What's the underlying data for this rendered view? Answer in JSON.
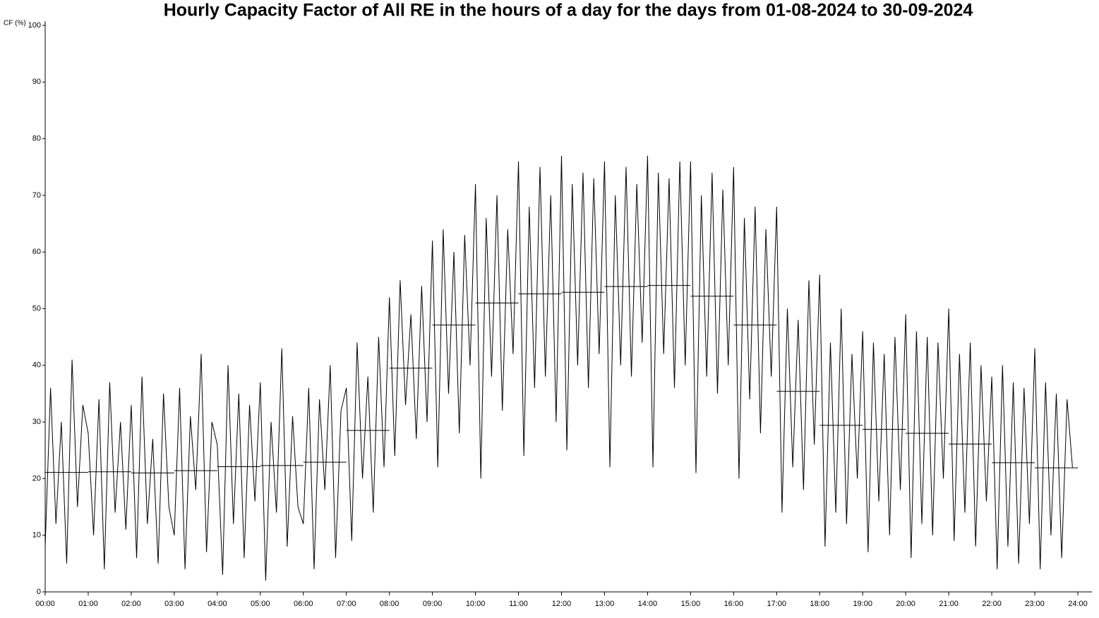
{
  "chart_data": {
    "type": "line",
    "title": "Hourly Capacity Factor of All RE in the hours of a day for the days from 01-08-2024 to 30-09-2024",
    "y_label": "CF (%)",
    "ylim": [
      0,
      100
    ],
    "yticks": [
      0,
      10,
      20,
      30,
      40,
      50,
      60,
      70,
      80,
      90,
      100
    ],
    "xlim": [
      0,
      24
    ],
    "xticks": [
      {
        "value": 0,
        "label": "00:00"
      },
      {
        "value": 1,
        "label": "01:00"
      },
      {
        "value": 2,
        "label": "02:00"
      },
      {
        "value": 3,
        "label": "03:00"
      },
      {
        "value": 4,
        "label": "04:00"
      },
      {
        "value": 5,
        "label": "05:00"
      },
      {
        "value": 6,
        "label": "06:00"
      },
      {
        "value": 7,
        "label": "07:00"
      },
      {
        "value": 8,
        "label": "08:00"
      },
      {
        "value": 9,
        "label": "09:00"
      },
      {
        "value": 10,
        "label": "10:00"
      },
      {
        "value": 11,
        "label": "11:00"
      },
      {
        "value": 12,
        "label": "12:00"
      },
      {
        "value": 13,
        "label": "13:00"
      },
      {
        "value": 14,
        "label": "14:00"
      },
      {
        "value": 15,
        "label": "15:00"
      },
      {
        "value": 16,
        "label": "16:00"
      },
      {
        "value": 17,
        "label": "17:00"
      },
      {
        "value": 18,
        "label": "18:00"
      },
      {
        "value": 19,
        "label": "19:00"
      },
      {
        "value": 20,
        "label": "20:00"
      },
      {
        "value": 21,
        "label": "21:00"
      },
      {
        "value": 22,
        "label": "22:00"
      },
      {
        "value": 23,
        "label": "23:00"
      },
      {
        "value": 24,
        "label": "24:00"
      }
    ],
    "series": [
      {
        "color": "#000000",
        "style": "line",
        "x": [
          0,
          0.125,
          0.25,
          0.375,
          0.5,
          0.625,
          0.75,
          0.875,
          1,
          1.125,
          1.25,
          1.375,
          1.5,
          1.625,
          1.75,
          1.875,
          2,
          2.125,
          2.25,
          2.375,
          2.5,
          2.625,
          2.75,
          2.875,
          3,
          3.125,
          3.25,
          3.375,
          3.5,
          3.625,
          3.75,
          3.875,
          4,
          4.125,
          4.25,
          4.375,
          4.5,
          4.625,
          4.75,
          4.875,
          5,
          5.125,
          5.25,
          5.375,
          5.5,
          5.625,
          5.75,
          5.875,
          6,
          6.125,
          6.25,
          6.375,
          6.5,
          6.625,
          6.75,
          6.875,
          7,
          7.125,
          7.25,
          7.375,
          7.5,
          7.625,
          7.75,
          7.875,
          8,
          8.125,
          8.25,
          8.375,
          8.5,
          8.625,
          8.75,
          8.875,
          9,
          9.125,
          9.25,
          9.375,
          9.5,
          9.625,
          9.75,
          9.875,
          10,
          10.125,
          10.25,
          10.375,
          10.5,
          10.625,
          10.75,
          10.875,
          11,
          11.125,
          11.25,
          11.375,
          11.5,
          11.625,
          11.75,
          11.875,
          12,
          12.125,
          12.25,
          12.375,
          12.5,
          12.625,
          12.75,
          12.875,
          13,
          13.125,
          13.25,
          13.375,
          13.5,
          13.625,
          13.75,
          13.875,
          14,
          14.125,
          14.25,
          14.375,
          14.5,
          14.625,
          14.75,
          14.875,
          15,
          15.125,
          15.25,
          15.375,
          15.5,
          15.625,
          15.75,
          15.875,
          16,
          16.125,
          16.25,
          16.375,
          16.5,
          16.625,
          16.75,
          16.875,
          17,
          17.125,
          17.25,
          17.375,
          17.5,
          17.625,
          17.75,
          17.875,
          18,
          18.125,
          18.25,
          18.375,
          18.5,
          18.625,
          18.75,
          18.875,
          19,
          19.125,
          19.25,
          19.375,
          19.5,
          19.625,
          19.75,
          19.875,
          20,
          20.125,
          20.25,
          20.375,
          20.5,
          20.625,
          20.75,
          20.875,
          21,
          21.125,
          21.25,
          21.375,
          21.5,
          21.625,
          21.75,
          21.875,
          22,
          22.125,
          22.25,
          22.375,
          22.5,
          22.625,
          22.75,
          22.875,
          23,
          23.125,
          23.25,
          23.375,
          23.5,
          23.625,
          23.75,
          23.875
        ],
        "values": [
          8,
          36,
          12,
          30,
          5,
          41,
          15,
          33,
          28,
          10,
          34,
          4,
          37,
          14,
          30,
          11,
          33,
          6,
          38,
          12,
          27,
          5,
          35,
          15,
          10,
          36,
          4,
          31,
          18,
          42,
          7,
          30,
          26,
          3,
          40,
          12,
          35,
          6,
          33,
          16,
          37,
          2,
          30,
          14,
          43,
          8,
          31,
          15,
          12,
          36,
          4,
          34,
          18,
          40,
          6,
          32,
          36,
          9,
          44,
          20,
          38,
          14,
          45,
          22,
          52,
          24,
          55,
          33,
          49,
          27,
          54,
          30,
          62,
          22,
          64,
          35,
          60,
          28,
          63,
          40,
          72,
          20,
          66,
          38,
          70,
          32,
          64,
          42,
          76,
          24,
          68,
          36,
          75,
          38,
          70,
          30,
          77,
          25,
          72,
          40,
          74,
          36,
          73,
          42,
          76,
          22,
          70,
          40,
          75,
          38,
          72,
          44,
          77,
          22,
          74,
          42,
          73,
          36,
          76,
          40,
          76,
          21,
          70,
          38,
          74,
          35,
          71,
          40,
          75,
          20,
          66,
          34,
          68,
          28,
          64,
          38,
          68,
          14,
          50,
          22,
          48,
          18,
          55,
          26,
          56,
          8,
          44,
          14,
          50,
          12,
          42,
          20,
          46,
          7,
          44,
          16,
          42,
          10,
          45,
          18,
          49,
          6,
          46,
          12,
          45,
          10,
          44,
          20,
          50,
          9,
          42,
          14,
          44,
          8,
          40,
          16,
          38,
          4,
          40,
          8,
          37,
          5,
          36,
          12,
          43,
          4,
          37,
          10,
          35,
          6,
          34,
          22
        ]
      },
      {
        "color": "#000000",
        "style": "step",
        "x": [
          0,
          1,
          2,
          3,
          4,
          5,
          6,
          7,
          8,
          9,
          10,
          11,
          12,
          13,
          14,
          15,
          16,
          17,
          18,
          19,
          20,
          21,
          22,
          23
        ],
        "values": [
          21.1,
          21.2,
          21,
          21.4,
          22.1,
          22.3,
          22.9,
          28.5,
          39.5,
          47.1,
          51,
          52.6,
          52.9,
          53.9,
          54.1,
          52.2,
          47.1,
          35.4,
          29.4,
          28.7,
          28,
          26.1,
          22.8,
          21.9
        ]
      }
    ]
  }
}
